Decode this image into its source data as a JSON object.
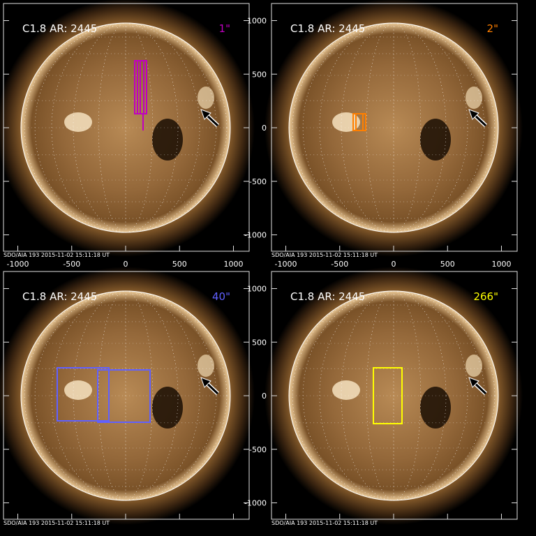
{
  "panels": [
    {
      "title": "C1.8 AR: 2445",
      "label": "1\"",
      "label_color": "#c000c0",
      "box_color": "#c000c0",
      "footer": "SDO/AIA 193   2015-11-02 15:11:18 UT",
      "show_x_ticks": true,
      "show_y_ticks": false
    },
    {
      "title": "C1.8 AR: 2445",
      "label": "2\"",
      "label_color": "#ff7f00",
      "box_color": "#ff7f00",
      "footer": "SDO/AIA 193   2015-11-02 15:11:18 UT",
      "show_x_ticks": true,
      "show_y_ticks": true
    },
    {
      "title": "C1.8 AR: 2445",
      "label": "40\"",
      "label_color": "#6060ff",
      "box_color": "#6060ff",
      "footer": "SDO/AIA 193   2015-11-02 15:11:18 UT",
      "show_x_ticks": false,
      "show_y_ticks": false
    },
    {
      "title": "C1.8 AR: 2445",
      "label": "266\"",
      "label_color": "#ffff00",
      "box_color": "#ffff00",
      "footer": "SDO/AIA 193   2015-11-02 15:11:18 UT",
      "show_x_ticks": false,
      "show_y_ticks": true
    }
  ],
  "x_ticks": [
    "-1000",
    "-500",
    "0",
    "500",
    "1000"
  ],
  "y_ticks": [
    "1000",
    "500",
    "0",
    "-500",
    "-1000"
  ],
  "colors": {
    "sun_core": "#e8c89a",
    "sun_mid": "#9a6a35",
    "corona": "#5a3a18",
    "background": "#000000",
    "axis": "#e0e0e0"
  }
}
